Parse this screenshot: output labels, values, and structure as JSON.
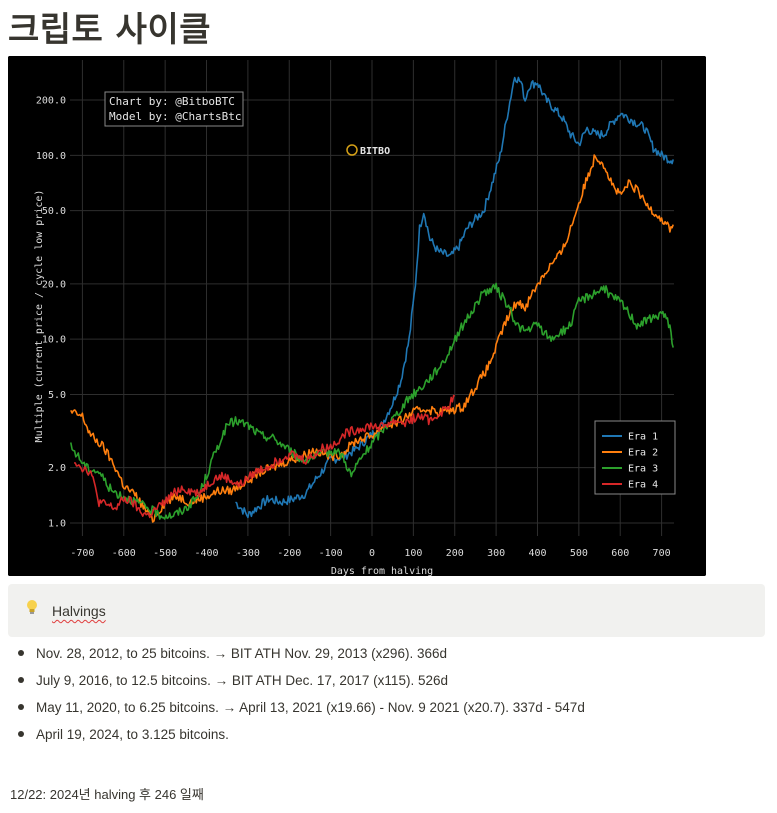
{
  "page": {
    "title": "크립토 사이클"
  },
  "callout": {
    "icon": "lightbulb-icon",
    "text": "Halvings"
  },
  "halvings": [
    "Nov. 28, 2012, to 25 bitcoins. → BIT ATH Nov. 29, 2013 (x296). 366d",
    "July 9, 2016, to 12.5 bitcoins. → BIT ATH Dec. 17, 2017 (x115). 526d",
    "May 11, 2020, to 6.25 bitcoins. → April 13, 2021 (x19.66) - Nov. 9 2021 (x20.7). 337d - 547d",
    "April 19, 2024, to 3.125 bitcoins."
  ],
  "footer_note": "12/22: 2024년 halving 후 246 일째",
  "chart_data": {
    "type": "line",
    "title": "",
    "xlabel": "Days from halving",
    "ylabel": "Multiple (current price / cycle low price)",
    "xlim": [
      -730,
      730
    ],
    "ylim": [
      0.85,
      330
    ],
    "yscale": "log",
    "x_ticks": [
      -700,
      -600,
      -500,
      -400,
      -300,
      -200,
      -100,
      0,
      100,
      200,
      300,
      400,
      500,
      600,
      700
    ],
    "y_ticks": [
      1.0,
      2.0,
      5.0,
      10.0,
      20.0,
      50.0,
      100.0,
      200.0
    ],
    "y_tick_labels": [
      "1.0",
      "2.0",
      "5.0",
      "10.0",
      "20.0",
      "50.0",
      "100.0",
      "200.0"
    ],
    "grid": true,
    "legend": "bottom-right",
    "annotation": [
      "Chart by: @BitboBTC",
      "Model by: @ChartsBtc"
    ],
    "watermark": "BITBO",
    "colors": {
      "background": "#000000",
      "grid": "#333333",
      "text": "#dddddd"
    },
    "series": [
      {
        "name": "Era 1",
        "color": "#1f77b4",
        "x": [
          -330,
          -300,
          -280,
          -250,
          -220,
          -190,
          -160,
          -130,
          -100,
          -70,
          -40,
          -10,
          20,
          50,
          70,
          90,
          105,
          115,
          125,
          140,
          160,
          190,
          210,
          230,
          250,
          270,
          290,
          310,
          330,
          345,
          360,
          370,
          380,
          400,
          420,
          440,
          460,
          480,
          500,
          520,
          540,
          560,
          580,
          600,
          620,
          640,
          660,
          680,
          700,
          720,
          728
        ],
        "y": [
          1.3,
          1.1,
          1.2,
          1.35,
          1.3,
          1.35,
          1.45,
          1.8,
          2.2,
          2.3,
          2.5,
          2.9,
          3.3,
          4.5,
          6.0,
          10.0,
          20.0,
          40.0,
          50.0,
          35.0,
          30.0,
          28.0,
          32.0,
          40.0,
          45.0,
          50.0,
          70.0,
          100.0,
          180.0,
          270.0,
          250.0,
          200.0,
          240.0,
          250.0,
          200.0,
          180.0,
          160.0,
          130.0,
          115.0,
          140.0,
          130.0,
          130.0,
          150.0,
          170.0,
          160.0,
          150.0,
          140.0,
          110.0,
          100.0,
          95.0,
          95.0
        ]
      },
      {
        "name": "Era 2",
        "color": "#ff7f0e",
        "x": [
          -728,
          -700,
          -680,
          -650,
          -620,
          -600,
          -570,
          -550,
          -530,
          -500,
          -470,
          -440,
          -400,
          -370,
          -340,
          -300,
          -270,
          -240,
          -200,
          -170,
          -140,
          -100,
          -70,
          -40,
          0,
          30,
          60,
          100,
          130,
          160,
          190,
          220,
          250,
          280,
          300,
          320,
          350,
          370,
          400,
          430,
          460,
          480,
          500,
          520,
          540,
          560,
          580,
          600,
          620,
          640,
          660,
          680,
          700,
          720,
          728
        ],
        "y": [
          4.0,
          3.8,
          3.0,
          2.6,
          2.0,
          1.6,
          1.4,
          1.2,
          1.05,
          1.3,
          1.4,
          1.3,
          1.4,
          1.5,
          1.5,
          1.7,
          1.9,
          2.0,
          2.2,
          2.3,
          2.5,
          2.3,
          2.4,
          2.8,
          3.0,
          3.4,
          3.5,
          4.0,
          4.2,
          4.0,
          4.1,
          4.3,
          5.5,
          7.0,
          9.0,
          12.0,
          16.0,
          15.0,
          20.0,
          25.0,
          30.0,
          40.0,
          55.0,
          75.0,
          100.0,
          90.0,
          70.0,
          60.0,
          70.0,
          65.0,
          55.0,
          50.0,
          45.0,
          40.0,
          42.0
        ]
      },
      {
        "name": "Era 3",
        "color": "#2ca02c",
        "x": [
          -728,
          -710,
          -690,
          -660,
          -630,
          -600,
          -570,
          -540,
          -510,
          -480,
          -450,
          -420,
          -400,
          -380,
          -350,
          -330,
          -300,
          -270,
          -240,
          -210,
          -190,
          -170,
          -140,
          -110,
          -90,
          -70,
          -50,
          -30,
          0,
          30,
          60,
          90,
          120,
          150,
          180,
          210,
          240,
          270,
          300,
          330,
          350,
          370,
          400,
          430,
          460,
          480,
          500,
          520,
          540,
          560,
          580,
          600,
          620,
          640,
          660,
          680,
          700,
          720,
          728
        ],
        "y": [
          2.6,
          2.3,
          2.0,
          1.9,
          1.5,
          1.4,
          1.3,
          1.2,
          1.1,
          1.1,
          1.2,
          1.4,
          1.8,
          2.4,
          3.4,
          3.6,
          3.4,
          3.0,
          2.9,
          2.6,
          2.4,
          2.2,
          2.3,
          2.4,
          2.5,
          2.3,
          1.8,
          2.2,
          2.7,
          3.3,
          3.9,
          4.8,
          5.5,
          6.5,
          8.0,
          11.0,
          14.0,
          18.0,
          19.0,
          15.0,
          12.0,
          11.0,
          12.0,
          10.0,
          11.0,
          12.0,
          16.0,
          17.0,
          18.0,
          19.0,
          17.0,
          16.0,
          14.0,
          12.0,
          12.5,
          13.0,
          14.0,
          12.0,
          9.0
        ]
      },
      {
        "name": "Era 4",
        "color": "#d62728",
        "x": [
          -720,
          -700,
          -680,
          -660,
          -640,
          -620,
          -600,
          -580,
          -560,
          -540,
          -520,
          -500,
          -480,
          -460,
          -440,
          -420,
          -400,
          -380,
          -360,
          -340,
          -320,
          -300,
          -280,
          -260,
          -240,
          -220,
          -200,
          -180,
          -160,
          -140,
          -120,
          -100,
          -80,
          -60,
          -40,
          -20,
          0,
          20,
          40,
          60,
          80,
          100,
          120,
          140,
          160,
          180,
          200
        ],
        "y": [
          2.2,
          2.0,
          1.9,
          1.3,
          1.25,
          1.2,
          1.35,
          1.3,
          1.15,
          1.1,
          1.2,
          1.3,
          1.45,
          1.55,
          1.5,
          1.45,
          1.6,
          1.75,
          1.8,
          1.7,
          1.6,
          1.75,
          1.9,
          2.0,
          2.1,
          2.25,
          2.4,
          2.3,
          2.2,
          2.35,
          2.55,
          2.6,
          2.85,
          3.1,
          3.2,
          3.3,
          3.4,
          3.3,
          3.5,
          3.6,
          3.5,
          3.7,
          3.8,
          3.6,
          3.9,
          4.2,
          4.9
        ]
      }
    ]
  }
}
